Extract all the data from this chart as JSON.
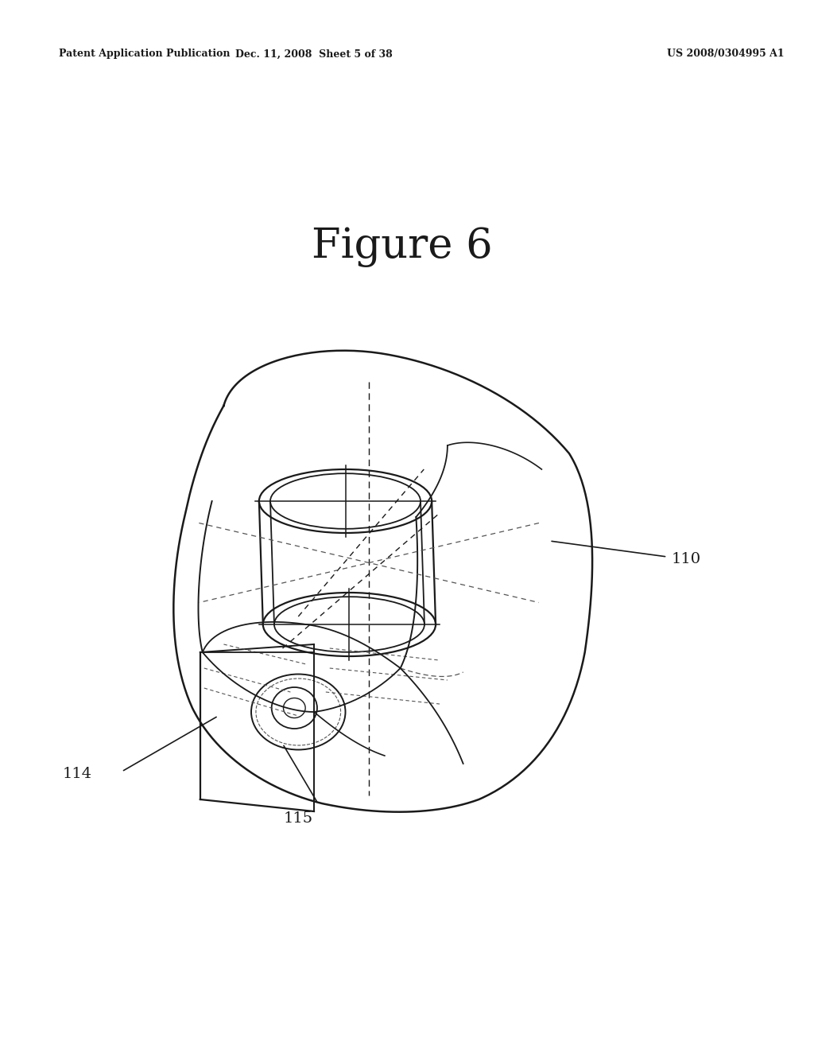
{
  "bg_color": "#ffffff",
  "line_color": "#1a1a1a",
  "dashed_color": "#555555",
  "header_left": "Patent Application Publication",
  "header_center": "Dec. 11, 2008  Sheet 5 of 38",
  "header_right": "US 2008/0304995 A1",
  "figure_title": "Figure 6",
  "label_110": "110",
  "label_114": "114",
  "label_115": "115",
  "header_fontsize": 9,
  "title_fontsize": 38,
  "label_fontsize": 14
}
